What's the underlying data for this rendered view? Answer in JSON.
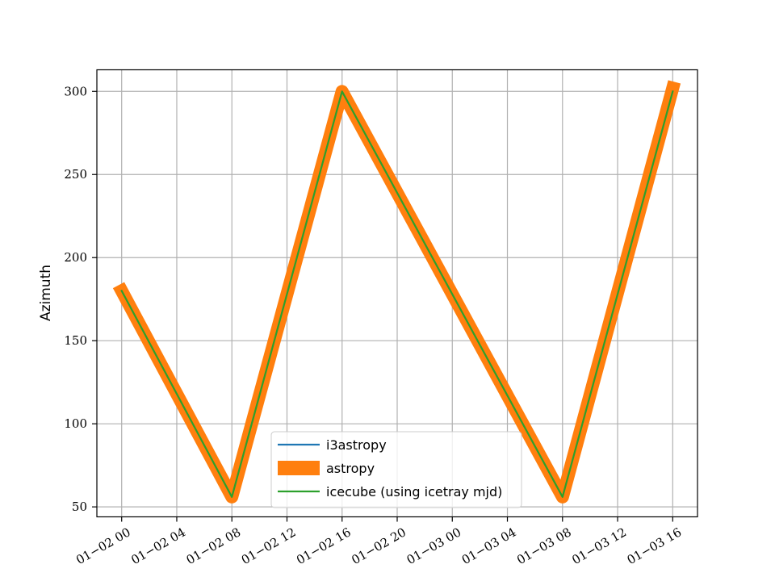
{
  "chart_data": {
    "type": "line",
    "title": "",
    "xlabel": "",
    "ylabel": "Azimuth",
    "x_tick_labels": [
      "01−02 00",
      "01−02 04",
      "01−02 08",
      "01−02 12",
      "01−02 16",
      "01−02 20",
      "01−03 00",
      "01−03 04",
      "01−03 08",
      "01−03 12",
      "01−03 16"
    ],
    "y_ticks": [
      50,
      100,
      150,
      200,
      250,
      300
    ],
    "xlim": [
      "2025-01-01T22:12",
      "2025-01-03T17:48"
    ],
    "ylim": [
      44,
      313
    ],
    "grid": true,
    "legend_position": "bottom-center",
    "series": [
      {
        "name": "i3astropy",
        "color": "#1f77b4",
        "style": "thin",
        "x": [
          "2025-01-02T00:00",
          "2025-01-02T08:00",
          "2025-01-02T16:00",
          "2025-01-03T08:00",
          "2025-01-03T16:00"
        ],
        "y": [
          180,
          56,
          300,
          56,
          300
        ]
      },
      {
        "name": "astropy",
        "color": "#ff7f0e",
        "style": "thick",
        "x": [
          "2025-01-02T00:00",
          "2025-01-02T08:00",
          "2025-01-02T16:00",
          "2025-01-03T08:00",
          "2025-01-03T16:00"
        ],
        "y": [
          180,
          56,
          300,
          56,
          302
        ]
      },
      {
        "name": "icecube (using icetray mjd)",
        "color": "#2ca02c",
        "style": "thin",
        "x": [
          "2025-01-02T00:00",
          "2025-01-02T08:00",
          "2025-01-02T16:00",
          "2025-01-03T08:00",
          "2025-01-03T16:00"
        ],
        "y": [
          180,
          56,
          300,
          56,
          300
        ]
      }
    ]
  }
}
